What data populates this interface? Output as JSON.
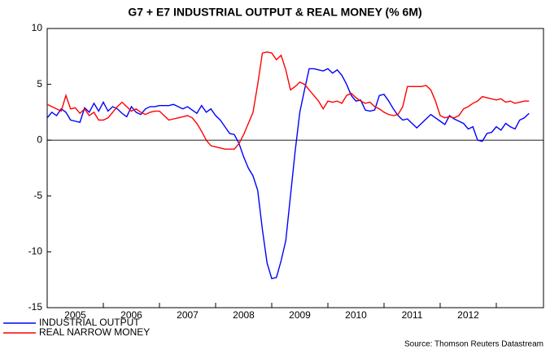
{
  "chart_data": {
    "type": "line",
    "title": "G7 + E7 INDUSTRIAL OUTPUT & REAL MONEY (% 6M)",
    "source": "Source: Thomson Reuters Datastream",
    "categories": [
      null,
      null,
      null,
      null,
      null,
      null,
      "2005",
      null,
      null,
      null,
      null,
      null,
      null,
      null,
      null,
      null,
      null,
      null,
      "2006",
      null,
      null,
      null,
      null,
      null,
      null,
      null,
      null,
      null,
      null,
      null,
      "2007",
      null,
      null,
      null,
      null,
      null,
      null,
      null,
      null,
      null,
      null,
      null,
      "2008",
      null,
      null,
      null,
      null,
      null,
      null,
      null,
      null,
      null,
      null,
      null,
      "2009",
      null,
      null,
      null,
      null,
      null,
      null,
      null,
      null,
      null,
      null,
      null,
      "2010",
      null,
      null,
      null,
      null,
      null,
      null,
      null,
      null,
      null,
      null,
      null,
      "2011",
      null,
      null,
      null,
      null,
      null,
      null,
      null,
      null,
      null,
      null,
      null,
      "2012",
      null,
      null,
      null,
      null,
      null,
      null,
      null,
      null,
      null,
      null,
      null,
      null,
      null
    ],
    "series": [
      {
        "name": "INDUSTRIAL OUTPUT",
        "color": "#0000ff",
        "values": [
          2.0,
          2.5,
          2.2,
          2.8,
          2.5,
          1.8,
          1.7,
          1.6,
          2.9,
          2.5,
          3.3,
          2.6,
          3.4,
          2.6,
          3.0,
          2.8,
          2.4,
          2.1,
          3.0,
          2.5,
          2.3,
          2.8,
          3.0,
          3.0,
          3.1,
          3.1,
          3.1,
          3.2,
          3.0,
          2.8,
          3.0,
          2.7,
          2.4,
          3.1,
          2.5,
          2.8,
          2.2,
          1.8,
          1.2,
          0.6,
          0.5,
          -0.3,
          -1.5,
          -2.5,
          -3.2,
          -4.5,
          -8.0,
          -11.0,
          -12.4,
          -12.3,
          -10.8,
          -9.0,
          -5.0,
          -1.0,
          2.5,
          4.5,
          6.4,
          6.4,
          6.3,
          6.2,
          6.4,
          6.0,
          6.3,
          5.8,
          5.0,
          4.0,
          3.5,
          3.6,
          2.7,
          2.6,
          2.7,
          4.0,
          4.1,
          3.5,
          2.8,
          2.2,
          1.8,
          1.9,
          1.5,
          1.1,
          1.5,
          1.9,
          2.3,
          2.0,
          1.7,
          1.4,
          2.2,
          1.9,
          1.7,
          1.5,
          1.0,
          1.2,
          0.0,
          -0.1,
          0.6,
          0.7,
          1.2,
          0.9,
          1.5,
          1.2,
          1.0,
          1.8,
          2.0,
          2.4
        ]
      },
      {
        "name": "REAL NARROW MONEY",
        "color": "#ff0000",
        "values": [
          3.2,
          3.0,
          2.8,
          2.6,
          4.0,
          2.8,
          2.9,
          2.4,
          2.8,
          2.2,
          2.5,
          1.8,
          1.8,
          2.0,
          2.5,
          3.0,
          3.4,
          3.0,
          2.6,
          2.8,
          2.5,
          2.3,
          2.5,
          2.6,
          2.6,
          2.2,
          1.8,
          1.9,
          2.0,
          2.1,
          2.2,
          2.0,
          1.5,
          0.8,
          0.0,
          -0.5,
          -0.6,
          -0.7,
          -0.8,
          -0.8,
          -0.8,
          -0.3,
          0.5,
          1.5,
          2.5,
          5.0,
          7.8,
          7.9,
          7.8,
          7.2,
          7.6,
          6.3,
          4.5,
          4.8,
          5.2,
          5.0,
          4.5,
          4.0,
          3.5,
          2.8,
          3.5,
          3.4,
          3.5,
          3.3,
          4.0,
          4.2,
          3.8,
          3.5,
          3.3,
          3.4,
          3.0,
          2.8,
          2.5,
          2.3,
          2.2,
          2.3,
          3.0,
          4.8,
          4.8,
          4.8,
          4.8,
          4.9,
          4.5,
          3.5,
          2.2,
          2.0,
          2.1,
          2.0,
          2.2,
          2.8,
          3.0,
          3.3,
          3.5,
          3.9,
          3.8,
          3.7,
          3.6,
          3.7,
          3.4,
          3.5,
          3.3,
          3.4,
          3.5,
          3.5
        ]
      }
    ],
    "ylim": [
      -15,
      10
    ],
    "yticks": [
      10,
      5,
      0,
      -5,
      -10,
      -15
    ],
    "grid": false,
    "legend": "bottom-left"
  }
}
